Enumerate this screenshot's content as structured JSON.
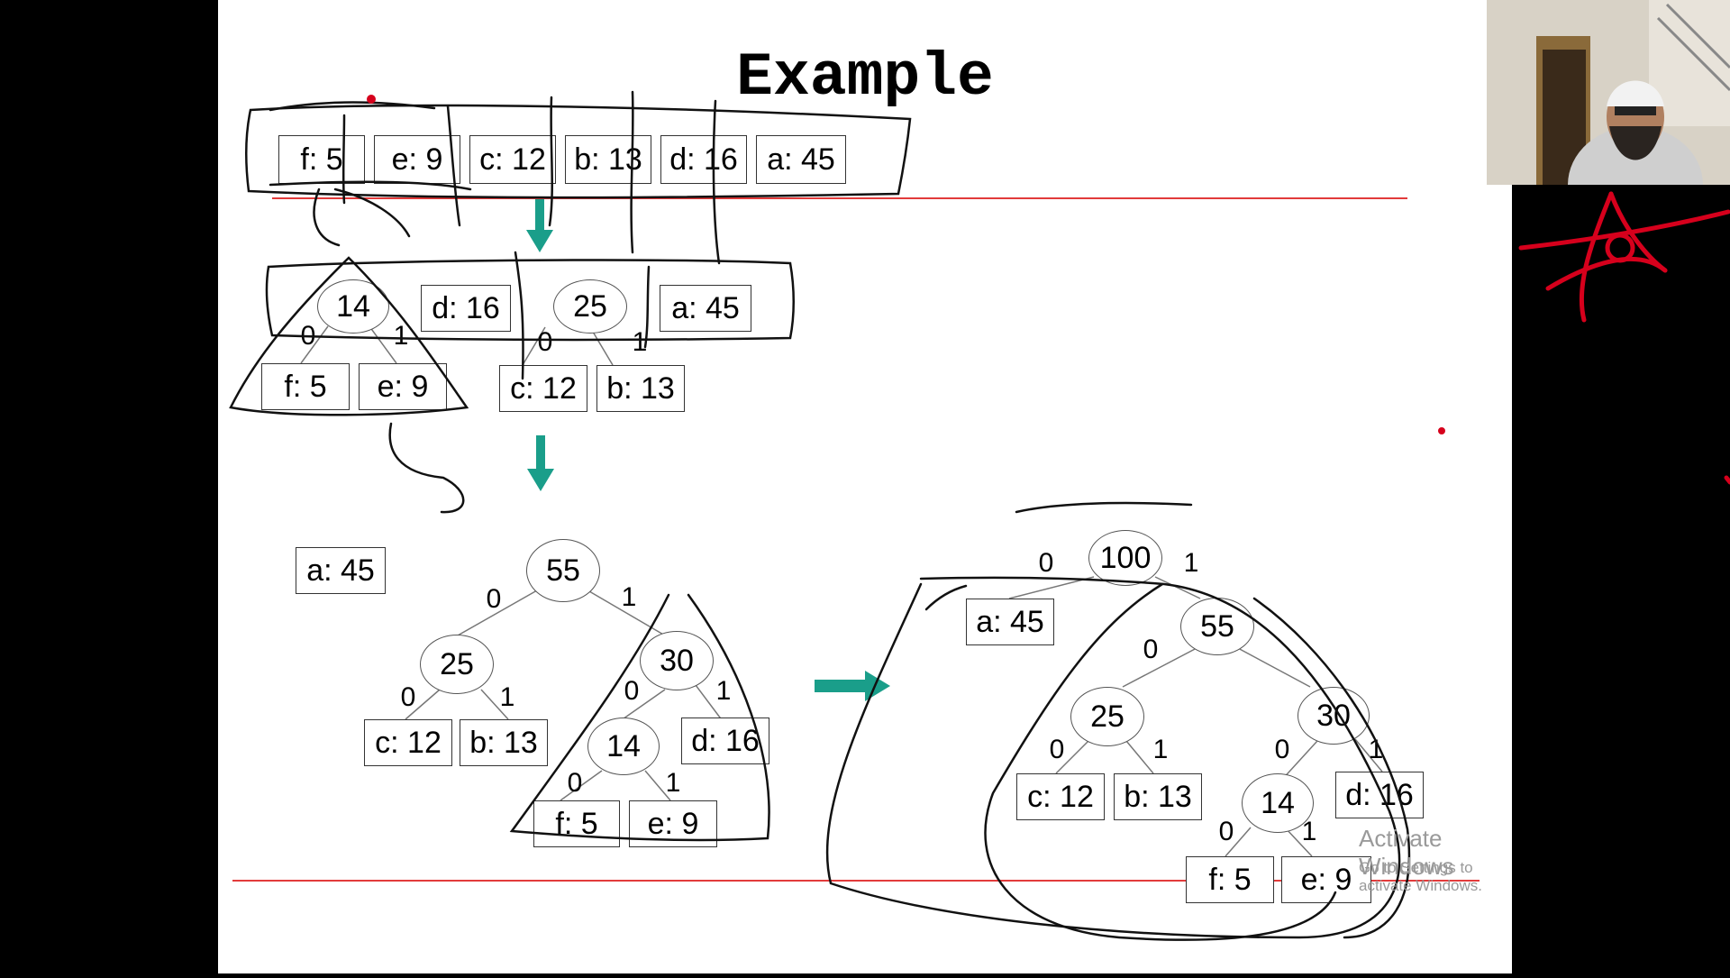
{
  "slide": {
    "title": "Example",
    "row1": [
      "f: 5",
      "e: 9",
      "c: 12",
      "b: 13",
      "d: 16",
      "a: 45"
    ],
    "stage2": {
      "node14": "14",
      "node25": "25",
      "d16": "d: 16",
      "a45": "a: 45",
      "f5": "f: 5",
      "e9": "e: 9",
      "c12": "c: 12",
      "b13": "b: 13",
      "bit0": "0",
      "bit1": "1"
    },
    "stage3": {
      "a45": "a: 45",
      "node55": "55",
      "node25": "25",
      "node30": "30",
      "node14": "14",
      "c12": "c: 12",
      "b13": "b: 13",
      "d16": "d: 16",
      "f5": "f: 5",
      "e9": "e: 9",
      "bit0": "0",
      "bit1": "1"
    },
    "stage4": {
      "node100": "100",
      "a45": "a: 45",
      "node55": "55",
      "node25": "25",
      "node30": "30",
      "node14": "14",
      "c12": "c: 12",
      "b13": "b: 13",
      "d16": "d: 16",
      "f5": "f: 5",
      "e9": "e: 9",
      "bit0": "0",
      "bit1": "1"
    }
  },
  "watermark": {
    "line1": "Activate Windows",
    "line2": "Go to Settings to activate Windows."
  },
  "colors": {
    "arrow": "#1a9e8a",
    "red_line": "#e23b3b",
    "ink": "#111111",
    "red_ink": "#d6001c"
  }
}
